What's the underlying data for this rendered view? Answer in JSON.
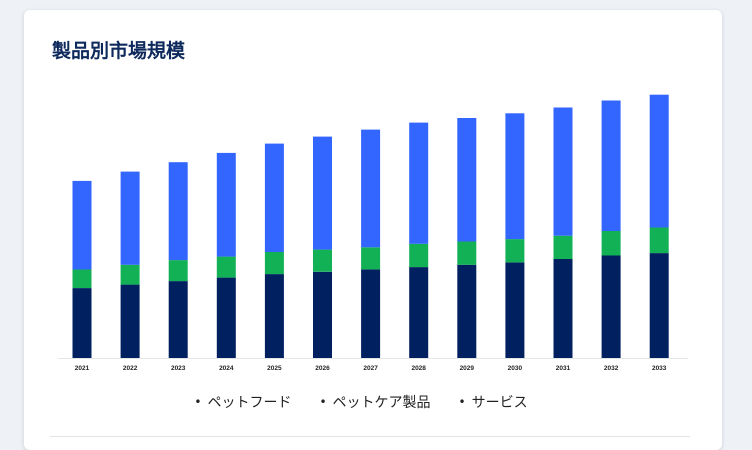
{
  "title": "製品別市場規模",
  "legend": {
    "items": [
      "ペットフード",
      "ペットケア製品",
      "サービス"
    ],
    "bullet": "•"
  },
  "colors": {
    "title": "#0e2a5c",
    "series": [
      "#012060",
      "#12b155",
      "#3366ff"
    ],
    "baseline": "#e6e6e6"
  },
  "chart_data": {
    "type": "bar",
    "stacked": true,
    "categories": [
      "2021",
      "2022",
      "2023",
      "2024",
      "2025",
      "2026",
      "2027",
      "2028",
      "2029",
      "2030",
      "2031",
      "2032",
      "2033"
    ],
    "series": [
      {
        "name": "ペットフード",
        "values": [
          60,
          63,
          66,
          69,
          72,
          74,
          76,
          78,
          80,
          82,
          85,
          88,
          90
        ]
      },
      {
        "name": "ペットケア製品",
        "values": [
          16,
          17,
          18,
          18,
          19,
          19,
          19,
          20,
          20,
          20,
          20,
          21,
          22
        ]
      },
      {
        "name": "サービス",
        "values": [
          76,
          80,
          84,
          89,
          93,
          97,
          101,
          104,
          106,
          108,
          110,
          112,
          114
        ]
      }
    ],
    "ylim": [
      0,
      230
    ],
    "grid": false,
    "legend_position": "bottom"
  }
}
